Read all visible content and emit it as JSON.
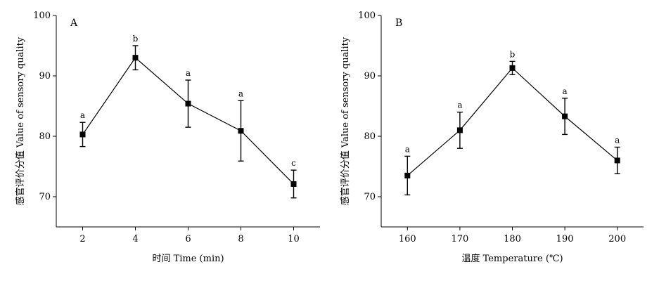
{
  "chart_data": [
    {
      "type": "line",
      "panel_label": "A",
      "xlabel": "时间 Time (min)",
      "ylabel": "感官评价分值 Value of sensory quality",
      "x": [
        2,
        4,
        6,
        8,
        10
      ],
      "xlim": [
        1,
        11
      ],
      "ylim": [
        65,
        100
      ],
      "yticks": [
        70,
        80,
        90,
        100
      ],
      "series": [
        {
          "values": [
            80.3,
            93.0,
            85.4,
            80.9,
            72.1
          ],
          "error": [
            2.0,
            2.0,
            3.9,
            5.0,
            2.3
          ],
          "labels": [
            "a",
            "b",
            "a",
            "a",
            "c"
          ]
        }
      ]
    },
    {
      "type": "line",
      "panel_label": "B",
      "xlabel": "温度 Temperature (℃)",
      "ylabel": "感官评价分值 Value of sensory quality",
      "x": [
        160,
        170,
        180,
        190,
        200
      ],
      "xlim": [
        155,
        205
      ],
      "ylim": [
        65,
        100
      ],
      "yticks": [
        70,
        80,
        90,
        100
      ],
      "series": [
        {
          "values": [
            73.5,
            81.0,
            91.3,
            83.3,
            76.0
          ],
          "error": [
            3.2,
            3.0,
            1.1,
            3.0,
            2.2
          ],
          "labels": [
            "a",
            "a",
            "b",
            "a",
            "a"
          ]
        }
      ]
    }
  ]
}
